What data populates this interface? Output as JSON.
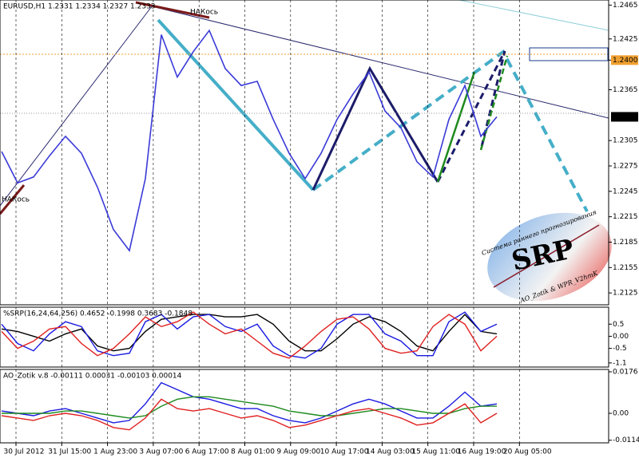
{
  "chart_data": [
    {
      "type": "line",
      "title": "EURUSD,H1  1.2331 1.2334 1.2327 1.2333",
      "series": [
        {
          "name": "EURUSD",
          "color": "#3a3ad8",
          "values": [
            1.2292,
            1.2255,
            1.2262,
            1.2287,
            1.231,
            1.229,
            1.225,
            1.22,
            1.2175,
            1.226,
            1.243,
            1.238,
            1.241,
            1.2435,
            1.239,
            1.237,
            1.2375,
            1.233,
            1.229,
            1.226,
            1.229,
            1.233,
            1.236,
            1.2386,
            1.234,
            1.232,
            1.228,
            1.2262,
            1.233,
            1.237,
            1.231,
            1.2333
          ]
        }
      ],
      "ylim": [
        1.2111,
        1.2471
      ],
      "yticks": [
        1.2465,
        1.2425,
        {
          "value": 1.24,
          "label": "1.2400"
        },
        1.2365,
        1.2305,
        1.2275,
        1.2245,
        1.2215,
        1.2185,
        1.2155,
        1.2125
      ],
      "last_price": 1.2333,
      "annotations": [
        "НАКось",
        "НАКось",
        "Система раннего прогнозирования",
        "SRP",
        "AO_Zotik & WPR_V2hmK"
      ]
    },
    {
      "type": "line",
      "title": "%SRP(16,24,64,256) 0.4652 -0.1998 0.3683 -0.1848",
      "series": [
        {
          "color": "#000000",
          "values": [
            0.3,
            0.2,
            0,
            -0.2,
            0.1,
            0.3,
            -0.4,
            -0.6,
            -0.5,
            0.2,
            0.7,
            0.8,
            0.9,
            0.9,
            0.8,
            0.8,
            0.9,
            0.5,
            -0.2,
            -0.6,
            -0.6,
            -0.1,
            0.5,
            0.8,
            0.6,
            0.2,
            -0.4,
            -0.6,
            0.2,
            0.9,
            0.2,
            0.1
          ]
        },
        {
          "color": "#1a1ae0",
          "values": [
            0.5,
            -0.3,
            -0.6,
            0.1,
            0.6,
            0.4,
            -0.6,
            -0.8,
            -0.7,
            0.6,
            0.9,
            0.3,
            0.8,
            0.9,
            0.4,
            0.2,
            0.5,
            -0.4,
            -0.8,
            -0.9,
            -0.5,
            0.5,
            0.9,
            0.9,
            0.1,
            -0.2,
            -0.8,
            -0.8,
            0.6,
            1.0,
            0.2,
            0.5
          ]
        },
        {
          "color": "#e02020",
          "values": [
            0.2,
            -0.5,
            -0.2,
            0.3,
            0.4,
            -0.3,
            -0.8,
            -0.5,
            0.1,
            0.8,
            0.4,
            0.6,
            1.0,
            0.5,
            0.1,
            0.3,
            -0.2,
            -0.7,
            -0.9,
            -0.4,
            0.2,
            0.7,
            0.8,
            0.3,
            -0.5,
            -0.7,
            -0.6,
            0.4,
            0.9,
            0.5,
            -0.6,
            0.0
          ]
        }
      ],
      "ylim": [
        -1.27,
        1.2
      ],
      "yticks": [
        0.5,
        {
          "value": 0,
          "label": "0.00"
        },
        -0.5,
        -1.1
      ]
    },
    {
      "type": "line",
      "title": "AO_Zotik v.8 -0.00111 0.00031 -0.00103 0.00014",
      "series": [
        {
          "color": "#1a1ae0",
          "values": [
            0.001,
            0,
            -0.001,
            0.001,
            0.002,
            0,
            -0.002,
            -0.004,
            -0.003,
            0.004,
            0.013,
            0.01,
            0.007,
            0.006,
            0.004,
            0.002,
            0.002,
            -0.001,
            -0.003,
            -0.004,
            -0.002,
            0.001,
            0.004,
            0.006,
            0.004,
            0.001,
            -0.002,
            -0.002,
            0.003,
            0.009,
            0.003,
            0.004
          ]
        },
        {
          "color": "#1e8a1e",
          "values": [
            0,
            0,
            0,
            0,
            0.001,
            0.001,
            0,
            -0.001,
            -0.002,
            -0.001,
            0.003,
            0.006,
            0.007,
            0.007,
            0.006,
            0.005,
            0.004,
            0.003,
            0.001,
            0,
            -0.001,
            -0.001,
            0,
            0.001,
            0.002,
            0.002,
            0.001,
            0,
            0,
            0.002,
            0.003,
            0.003
          ]
        },
        {
          "color": "#e02020",
          "values": [
            -0.001,
            -0.002,
            -0.003,
            -0.001,
            0,
            -0.001,
            -0.003,
            -0.006,
            -0.007,
            -0.002,
            0.006,
            0.002,
            0.001,
            0.002,
            0,
            -0.002,
            -0.001,
            -0.003,
            -0.006,
            -0.005,
            -0.003,
            -0.001,
            0.001,
            0.002,
            0,
            -0.002,
            -0.005,
            -0.004,
            0,
            0.004,
            -0.004,
            0
          ]
        }
      ],
      "ylim": [
        -0.0125,
        0.0186
      ],
      "yticks": [
        0.0176,
        {
          "value": 0,
          "label": "0.00"
        },
        -0.0114
      ]
    }
  ],
  "time_labels": [
    "30 Jul 2012",
    "31 Jul 15:00",
    "1 Aug 23:00",
    "3 Aug 07:00",
    "6 Aug 17:00",
    "8 Aug 01:00",
    "9 Aug 09:00",
    "10 Aug 17:00",
    "14 Aug 03:00",
    "15 Aug 11:00",
    "16 Aug 19:00",
    "20 Aug 05:00"
  ]
}
